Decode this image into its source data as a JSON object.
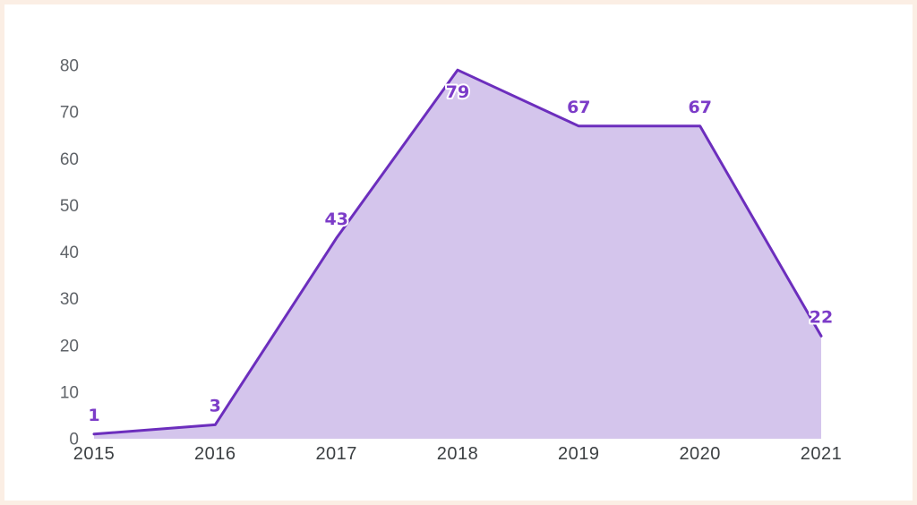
{
  "page": {
    "frame_color": "#fbeee4",
    "canvas_color": "#ffffff"
  },
  "chart_data": {
    "type": "area",
    "title": "",
    "xlabel": "",
    "ylabel": "",
    "x": [
      "2015",
      "2016",
      "2017",
      "2018",
      "2019",
      "2020",
      "2021"
    ],
    "values": [
      1,
      3,
      43,
      79,
      67,
      67,
      22
    ],
    "data_labels": [
      "1",
      "3",
      "43",
      "79",
      "67",
      "67",
      "22"
    ],
    "yticks": [
      0,
      10,
      20,
      30,
      40,
      50,
      60,
      70,
      80
    ],
    "ylim": [
      0,
      80
    ],
    "grid": false,
    "legend": false,
    "axis_lines": false,
    "colors": {
      "line": "#6c2ebd",
      "fill": "#d4c5ec",
      "data_label": "#7c3cc8",
      "data_label_outline": "#ffffff",
      "y_tick_label": "#5f6368",
      "x_tick_label": "#3c4043"
    }
  }
}
